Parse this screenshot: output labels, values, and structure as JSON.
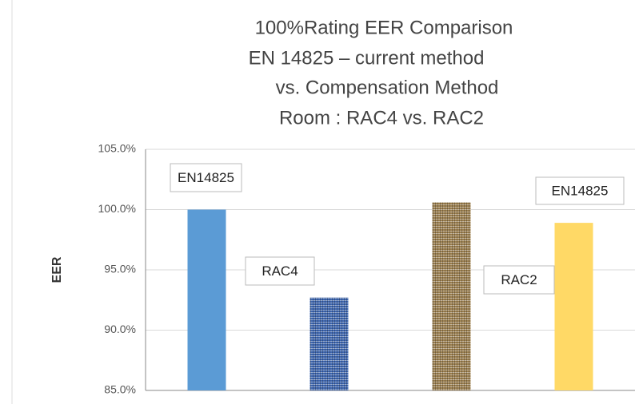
{
  "chart_data": {
    "type": "bar",
    "title": "100%Rating EER Comparison",
    "subtitle": [
      "EN 14825 – current method",
      "vs. Compensation Method",
      "Room : RAC4 vs. RAC2"
    ],
    "y_label": "EER",
    "categories": [
      null,
      null,
      null,
      null
    ],
    "values": [
      100.0,
      92.7,
      100.6,
      98.9
    ],
    "colors": [
      "#5b9bd5",
      "#3f67b0",
      "#9c8050",
      "#ffd966"
    ],
    "textured": [
      false,
      true,
      true,
      false
    ],
    "annotations": [
      "EN14825",
      "RAC4",
      "RAC2",
      "EN14825"
    ],
    "ylim": [
      85,
      105
    ],
    "yticks": [
      {
        "value": 85,
        "label": "85.0%"
      },
      {
        "value": 90,
        "label": "90.0%"
      },
      {
        "value": 95,
        "label": "95.0%"
      },
      {
        "value": 100,
        "label": "100.0%"
      },
      {
        "value": 105,
        "label": "105.0%"
      }
    ],
    "grid": true
  }
}
